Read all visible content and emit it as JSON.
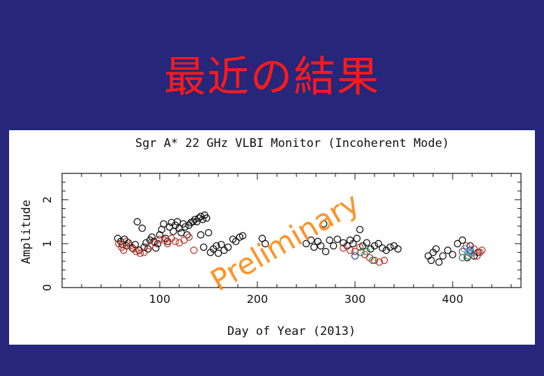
{
  "slide": {
    "title": "最近の結果"
  },
  "chart_data": {
    "type": "scatter",
    "title": "Sgr A* 22 GHz VLBI Monitor (Incoherent Mode)",
    "xlabel": "Day of Year (2013)",
    "ylabel": "Amplitude",
    "xlim": [
      0,
      470
    ],
    "ylim": [
      0,
      2.6
    ],
    "x_ticks": [
      100,
      200,
      300,
      400
    ],
    "y_ticks": [
      0,
      1,
      2
    ],
    "watermark": "Preliminary",
    "colors": {
      "black": "#111111",
      "red": "#c0392b",
      "green": "#2e8b57",
      "cyan": "#29b6d9",
      "blue": "#3040b0"
    },
    "series": [
      {
        "color": "black",
        "points": [
          [
            57,
            1.12
          ],
          [
            60,
            1.05
          ],
          [
            62,
            0.98
          ],
          [
            64,
            1.1
          ],
          [
            66,
            0.95
          ],
          [
            68,
            1.02
          ],
          [
            72,
            0.9
          ],
          [
            75,
            0.98
          ],
          [
            77,
            1.5
          ],
          [
            79,
            0.85
          ],
          [
            82,
            1.35
          ],
          [
            84,
            0.92
          ],
          [
            86,
            1.02
          ],
          [
            88,
            0.88
          ],
          [
            90,
            1.08
          ],
          [
            92,
            1.15
          ],
          [
            94,
            1.05
          ],
          [
            96,
            0.9
          ],
          [
            98,
            1.0
          ],
          [
            100,
            1.2
          ],
          [
            102,
            1.32
          ],
          [
            104,
            1.45
          ],
          [
            106,
            1.12
          ],
          [
            108,
            1.05
          ],
          [
            110,
            1.38
          ],
          [
            112,
            1.48
          ],
          [
            114,
            1.28
          ],
          [
            116,
            1.42
          ],
          [
            118,
            1.5
          ],
          [
            120,
            1.35
          ],
          [
            122,
            1.25
          ],
          [
            124,
            1.45
          ],
          [
            126,
            1.38
          ],
          [
            128,
            1.2
          ],
          [
            130,
            1.42
          ],
          [
            132,
            1.48
          ],
          [
            134,
            1.5
          ],
          [
            136,
            1.55
          ],
          [
            138,
            1.5
          ],
          [
            140,
            1.58
          ],
          [
            142,
            1.62
          ],
          [
            144,
            1.55
          ],
          [
            146,
            1.65
          ],
          [
            148,
            1.58
          ],
          [
            142,
            1.2
          ],
          [
            145,
            0.92
          ],
          [
            150,
            1.25
          ],
          [
            152,
            0.8
          ],
          [
            155,
            0.88
          ],
          [
            158,
            0.95
          ],
          [
            160,
            0.78
          ],
          [
            163,
            0.98
          ],
          [
            166,
            0.85
          ],
          [
            170,
            0.92
          ],
          [
            175,
            1.1
          ],
          [
            178,
            1.05
          ],
          [
            182,
            1.15
          ],
          [
            185,
            1.18
          ],
          [
            205,
            1.12
          ],
          [
            208,
            1.0
          ],
          [
            250,
            1.0
          ],
          [
            255,
            1.08
          ],
          [
            258,
            0.92
          ],
          [
            262,
            1.05
          ],
          [
            265,
            0.95
          ],
          [
            268,
            1.45
          ],
          [
            270,
            0.82
          ],
          [
            274,
            1.08
          ],
          [
            278,
            0.95
          ],
          [
            282,
            1.1
          ],
          [
            288,
            1.02
          ],
          [
            292,
            0.95
          ],
          [
            295,
            1.08
          ],
          [
            298,
            1.0
          ],
          [
            302,
            1.12
          ],
          [
            305,
            1.32
          ],
          [
            308,
            0.95
          ],
          [
            312,
            1.02
          ],
          [
            316,
            0.88
          ],
          [
            320,
            0.95
          ],
          [
            324,
            1.0
          ],
          [
            328,
            0.9
          ],
          [
            332,
            0.85
          ],
          [
            336,
            0.92
          ],
          [
            340,
            0.95
          ],
          [
            344,
            0.88
          ],
          [
            375,
            0.72
          ],
          [
            378,
            0.62
          ],
          [
            380,
            0.8
          ],
          [
            383,
            0.88
          ],
          [
            386,
            0.58
          ],
          [
            390,
            0.72
          ],
          [
            395,
            0.85
          ],
          [
            400,
            0.75
          ],
          [
            405,
            1.0
          ],
          [
            410,
            1.08
          ],
          [
            415,
            0.68
          ],
          [
            418,
            0.95
          ],
          [
            422,
            0.72
          ],
          [
            426,
            0.8
          ]
        ]
      },
      {
        "color": "red",
        "points": [
          [
            58,
            1.0
          ],
          [
            61,
            0.92
          ],
          [
            63,
            0.85
          ],
          [
            66,
            1.05
          ],
          [
            70,
            0.95
          ],
          [
            73,
            0.88
          ],
          [
            76,
            0.82
          ],
          [
            80,
            0.78
          ],
          [
            84,
            0.8
          ],
          [
            90,
            0.95
          ],
          [
            95,
            1.02
          ],
          [
            100,
            1.1
          ],
          [
            105,
            1.08
          ],
          [
            108,
            1.0
          ],
          [
            112,
            1.12
          ],
          [
            116,
            1.05
          ],
          [
            120,
            1.02
          ],
          [
            125,
            1.08
          ],
          [
            130,
            1.15
          ],
          [
            135,
            0.85
          ],
          [
            288,
            0.9
          ],
          [
            295,
            0.85
          ],
          [
            300,
            0.82
          ],
          [
            305,
            0.92
          ],
          [
            310,
            0.75
          ],
          [
            315,
            0.68
          ],
          [
            320,
            0.62
          ],
          [
            325,
            0.58
          ],
          [
            330,
            0.62
          ],
          [
            410,
            0.82
          ],
          [
            414,
            0.95
          ],
          [
            418,
            0.78
          ],
          [
            422,
            0.88
          ],
          [
            425,
            0.72
          ],
          [
            428,
            0.8
          ],
          [
            430,
            0.85
          ]
        ]
      },
      {
        "color": "green",
        "points": [
          [
            306,
            0.8
          ],
          [
            312,
            0.82
          ],
          [
            318,
            0.62
          ],
          [
            410,
            0.68
          ],
          [
            416,
            0.72
          ]
        ]
      },
      {
        "color": "cyan",
        "points": [
          [
            412,
            0.88
          ],
          [
            416,
            0.82
          ],
          [
            420,
            0.78
          ]
        ]
      },
      {
        "color": "blue",
        "points": [
          [
            300,
            0.72
          ],
          [
            418,
            0.85
          ]
        ]
      }
    ]
  }
}
